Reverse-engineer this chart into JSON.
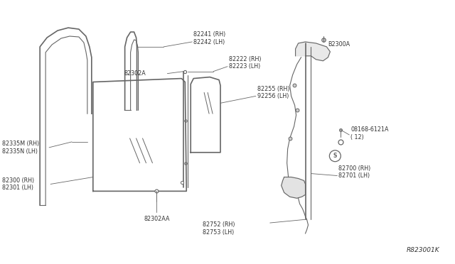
{
  "bg_color": "#ffffff",
  "line_color": "#666666",
  "text_color": "#333333",
  "diagram_ref": "R823001K",
  "parts": {
    "label_82241": "82241 (RH)\n82242 (LH)",
    "label_82222": "82222 (RH)\n82223 (LH)",
    "label_82302A": "82302A",
    "label_82255": "82255 (RH)\n92256 (LH)",
    "label_82335": "82335M (RH)\n82335N (LH)",
    "label_82300": "82300 (RH)\n82301 (LH)",
    "label_82302AA": "82302AA",
    "label_82752": "82752 (RH)\n82753 (LH)",
    "label_B2300A": "B2300A",
    "label_screw": "08168-6121A\n( 12)",
    "label_82700": "82700 (RH)\n82701 (LH)"
  }
}
